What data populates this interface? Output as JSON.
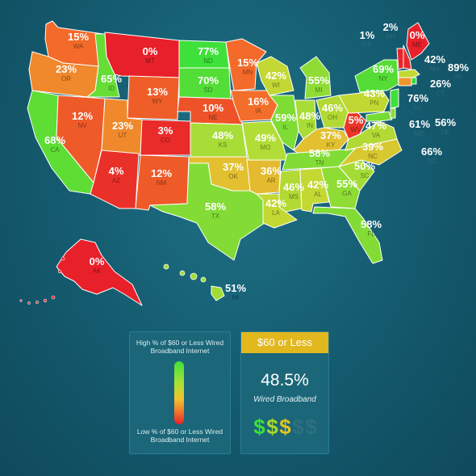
{
  "states": [
    {
      "code": "WA",
      "pct": "15%",
      "color": "#f36a2a"
    },
    {
      "code": "OR",
      "pct": "23%",
      "color": "#f0882c"
    },
    {
      "code": "CA",
      "pct": "68%",
      "color": "#5edd35"
    },
    {
      "code": "ID",
      "pct": "65%",
      "color": "#66dd35"
    },
    {
      "code": "NV",
      "pct": "12%",
      "color": "#ef5a29"
    },
    {
      "code": "MT",
      "pct": "0%",
      "color": "#e8202a"
    },
    {
      "code": "WY",
      "pct": "13%",
      "color": "#ef5e29"
    },
    {
      "code": "UT",
      "pct": "23%",
      "color": "#f0892c"
    },
    {
      "code": "AZ",
      "pct": "4%",
      "color": "#ea3129"
    },
    {
      "code": "CO",
      "pct": "3%",
      "color": "#e92b29"
    },
    {
      "code": "NM",
      "pct": "12%",
      "color": "#ef5a29"
    },
    {
      "code": "ND",
      "pct": "77%",
      "color": "#3ee03a"
    },
    {
      "code": "SD",
      "pct": "70%",
      "color": "#52de37"
    },
    {
      "code": "NE",
      "pct": "10%",
      "color": "#ee5229"
    },
    {
      "code": "KS",
      "pct": "48%",
      "color": "#a7dd36"
    },
    {
      "code": "OK",
      "pct": "37%",
      "color": "#e2c030"
    },
    {
      "code": "TX",
      "pct": "58%",
      "color": "#82dc35"
    },
    {
      "code": "MN",
      "pct": "15%",
      "color": "#f36a2a"
    },
    {
      "code": "IA",
      "pct": "16%",
      "color": "#f36e2a"
    },
    {
      "code": "MO",
      "pct": "49%",
      "color": "#b2dd36"
    },
    {
      "code": "AR",
      "pct": "36%",
      "color": "#e4bb30"
    },
    {
      "code": "LA",
      "pct": "42%",
      "color": "#c3d833"
    },
    {
      "code": "WI",
      "pct": "42%",
      "color": "#c3d833"
    },
    {
      "code": "IL",
      "pct": "59%",
      "color": "#7edc35"
    },
    {
      "code": "MI",
      "pct": "55%",
      "color": "#8fdc35"
    },
    {
      "code": "IN",
      "pct": "48%",
      "color": "#a7dd36"
    },
    {
      "code": "OH",
      "pct": "46%",
      "color": "#b2d934"
    },
    {
      "code": "KY",
      "pct": "37%",
      "color": "#e2c030"
    },
    {
      "code": "TN",
      "pct": "58%",
      "color": "#82dc35"
    },
    {
      "code": "MS",
      "pct": "46%",
      "color": "#b2d934"
    },
    {
      "code": "AL",
      "pct": "42%",
      "color": "#c3d833"
    },
    {
      "code": "GA",
      "pct": "55%",
      "color": "#8fdc35"
    },
    {
      "code": "FL",
      "pct": "58%",
      "color": "#82dc35"
    },
    {
      "code": "SC",
      "pct": "50%",
      "color": "#a4dc35"
    },
    {
      "code": "NC",
      "pct": "39%",
      "color": "#d7c830"
    },
    {
      "code": "VA",
      "pct": "47%",
      "color": "#b2d934"
    },
    {
      "code": "WV",
      "pct": "5%",
      "color": "#ea3629"
    },
    {
      "code": "PN",
      "pct": "43%",
      "color": "#c1d833"
    },
    {
      "code": "NY",
      "pct": "69%",
      "color": "#55dd36"
    },
    {
      "code": "ME",
      "pct": "0%",
      "color": "#e8202a"
    },
    {
      "code": "VT",
      "pct": "1%",
      "color": "#e8242a"
    },
    {
      "code": "NH",
      "pct": "2%",
      "color": "#e9272a"
    },
    {
      "code": "MA",
      "pct": "42%",
      "color": "#c3d833"
    },
    {
      "code": "RI",
      "pct": "89%",
      "color": "#30e03a"
    },
    {
      "code": "CT",
      "pct": "26%",
      "color": "#f0952c"
    },
    {
      "code": "NJ",
      "pct": "76%",
      "color": "#40e03a"
    },
    {
      "code": "MD",
      "pct": "61%",
      "color": "#74dc35"
    },
    {
      "code": "DE",
      "pct": "56%",
      "color": "#8adc35"
    },
    {
      "code": "DC",
      "pct": "66%",
      "color": "#62dd35"
    },
    {
      "code": "AK",
      "pct": "0%",
      "color": "#e8202a"
    },
    {
      "code": "HI",
      "pct": "51%",
      "color": "#a0dc35"
    }
  ],
  "legend": {
    "high_text": "High % of $60 or Less Wired Broadband Internet",
    "low_text": "Low % of $60 or Less Wired Broadband Internet",
    "gradient_colors": [
      "#3ee03a",
      "#a8e036",
      "#f2c12e",
      "#f0772a",
      "#e8202a"
    ]
  },
  "summary": {
    "header": "$60 or Less",
    "value": "48.5%",
    "subtitle": "Wired Broadband",
    "rating_symbol": "$",
    "rating_level": 3,
    "rating_max": 5,
    "rating_colors": [
      "#3ee03a",
      "#a6d92c",
      "#e2c51e",
      "#2e7081",
      "#2e7081"
    ]
  },
  "colors": {
    "background": "#145a6e",
    "panel": "#1b6679",
    "header_gold": "#e2b81f"
  }
}
